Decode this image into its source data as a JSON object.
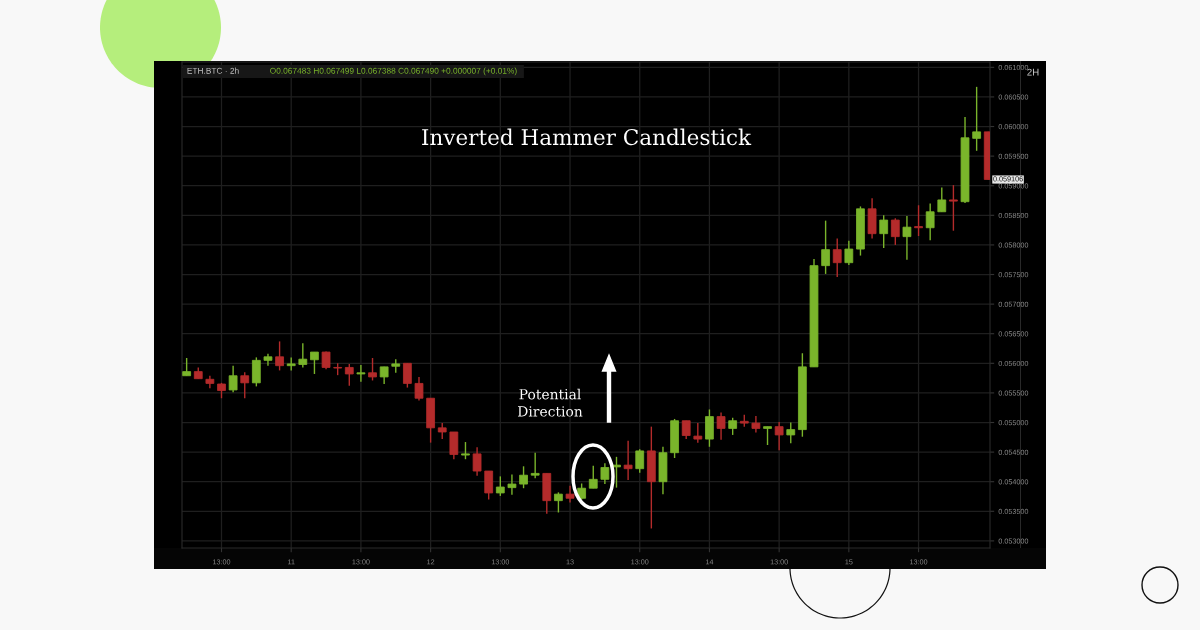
{
  "chart_data": {
    "type": "candlestick",
    "title": "Inverted Hammer Candlestick",
    "subtitle": "ETH.BTC · 2h",
    "categories": [
      null,
      null,
      null,
      "13:00",
      null,
      null,
      null,
      null,
      null,
      "11",
      null,
      null,
      null,
      null,
      null,
      "13:00",
      null,
      null,
      null,
      null,
      null,
      "12",
      null,
      null,
      null,
      null,
      null,
      "13:00",
      null,
      null,
      null,
      null,
      null,
      "13",
      null,
      null,
      null,
      null,
      null,
      "13:00",
      null,
      null,
      null,
      null,
      null,
      "14",
      null,
      null,
      null,
      null,
      null,
      "13:00",
      null,
      null,
      null,
      null,
      null,
      "15",
      null,
      null,
      null,
      null,
      null,
      "13:00",
      null,
      null,
      null,
      null,
      null,
      null
    ],
    "ohlc": [
      [
        0.05579,
        0.05609,
        0.05579,
        0.05586
      ],
      [
        0.05586,
        0.05593,
        0.05574,
        0.05574
      ],
      [
        0.05573,
        0.05579,
        0.05558,
        0.05566
      ],
      [
        0.05565,
        0.05567,
        0.05541,
        0.05554
      ],
      [
        0.05555,
        0.05596,
        0.05551,
        0.05579
      ],
      [
        0.05579,
        0.05585,
        0.05541,
        0.05567
      ],
      [
        0.05567,
        0.0561,
        0.05561,
        0.05605
      ],
      [
        0.05605,
        0.05616,
        0.05596,
        0.05611
      ],
      [
        0.05611,
        0.05637,
        0.05588,
        0.05596
      ],
      [
        0.05596,
        0.0561,
        0.05588,
        0.05599
      ],
      [
        0.05598,
        0.05634,
        0.05593,
        0.05607
      ],
      [
        0.05606,
        0.05619,
        0.05582,
        0.05619
      ],
      [
        0.05619,
        0.0562,
        0.0559,
        0.05593
      ],
      [
        0.05593,
        0.056,
        0.0558,
        0.05592
      ],
      [
        0.05593,
        0.05599,
        0.05562,
        0.05582
      ],
      [
        0.05582,
        0.05597,
        0.05569,
        0.05584
      ],
      [
        0.05584,
        0.05609,
        0.05571,
        0.05577
      ],
      [
        0.05577,
        0.05594,
        0.05565,
        0.05594
      ],
      [
        0.05595,
        0.05607,
        0.05584,
        0.05599
      ],
      [
        0.056,
        0.056,
        0.05559,
        0.05566
      ],
      [
        0.05566,
        0.05577,
        0.05537,
        0.05541
      ],
      [
        0.05541,
        0.05541,
        0.05466,
        0.05491
      ],
      [
        0.05491,
        0.05499,
        0.05472,
        0.05484
      ],
      [
        0.05484,
        0.05484,
        0.05438,
        0.05446
      ],
      [
        0.05445,
        0.05467,
        0.05438,
        0.05447
      ],
      [
        0.05447,
        0.05458,
        0.0541,
        0.05418
      ],
      [
        0.05418,
        0.05418,
        0.0537,
        0.05381
      ],
      [
        0.05381,
        0.05409,
        0.05376,
        0.05391
      ],
      [
        0.0539,
        0.05412,
        0.05378,
        0.05396
      ],
      [
        0.05396,
        0.05426,
        0.05389,
        0.05411
      ],
      [
        0.05411,
        0.05449,
        0.05406,
        0.05414
      ],
      [
        0.05414,
        0.05414,
        0.05346,
        0.05368
      ],
      [
        0.05368,
        0.05382,
        0.05348,
        0.05379
      ],
      [
        0.05379,
        0.05393,
        0.05365,
        0.05372
      ],
      [
        0.05372,
        0.05397,
        0.0537,
        0.05389
      ],
      [
        0.05389,
        0.05427,
        0.05389,
        0.05404
      ],
      [
        0.05404,
        0.05431,
        0.05396,
        0.05424
      ],
      [
        0.05425,
        0.05442,
        0.0539,
        0.05428
      ],
      [
        0.05428,
        0.05469,
        0.05403,
        0.05422
      ],
      [
        0.05422,
        0.05455,
        0.05415,
        0.05452
      ],
      [
        0.05452,
        0.05493,
        0.05321,
        0.054
      ],
      [
        0.054,
        0.05459,
        0.05379,
        0.05449
      ],
      [
        0.05449,
        0.05506,
        0.0544,
        0.05503
      ],
      [
        0.05503,
        0.05503,
        0.05472,
        0.05478
      ],
      [
        0.05477,
        0.05499,
        0.05466,
        0.05472
      ],
      [
        0.05472,
        0.05522,
        0.05459,
        0.0551
      ],
      [
        0.0551,
        0.05517,
        0.05471,
        0.0549
      ],
      [
        0.0549,
        0.05508,
        0.05479,
        0.05503
      ],
      [
        0.05502,
        0.05513,
        0.05493,
        0.05499
      ],
      [
        0.05499,
        0.05511,
        0.05483,
        0.0549
      ],
      [
        0.0549,
        0.05493,
        0.05462,
        0.05493
      ],
      [
        0.05493,
        0.05501,
        0.05453,
        0.05479
      ],
      [
        0.05479,
        0.055,
        0.05465,
        0.05488
      ],
      [
        0.05488,
        0.05617,
        0.05476,
        0.05594
      ],
      [
        0.05594,
        0.05776,
        0.05594,
        0.05765
      ],
      [
        0.05765,
        0.05841,
        0.05751,
        0.05792
      ],
      [
        0.05792,
        0.05811,
        0.05746,
        0.0577
      ],
      [
        0.0577,
        0.05807,
        0.05766,
        0.05793
      ],
      [
        0.05793,
        0.05865,
        0.05782,
        0.05861
      ],
      [
        0.05861,
        0.05879,
        0.05811,
        0.05819
      ],
      [
        0.05819,
        0.0585,
        0.05795,
        0.05842
      ],
      [
        0.05842,
        0.05845,
        0.058,
        0.05814
      ],
      [
        0.05814,
        0.05849,
        0.05775,
        0.0583
      ],
      [
        0.05831,
        0.05867,
        0.05815,
        0.05829
      ],
      [
        0.05829,
        0.0587,
        0.05808,
        0.05856
      ],
      [
        0.05856,
        0.05897,
        0.05856,
        0.05876
      ],
      [
        0.05876,
        0.05901,
        0.05824,
        0.05874
      ],
      [
        0.05873,
        0.06016,
        0.05871,
        0.05981
      ],
      [
        0.0598,
        0.06067,
        0.05959,
        0.05991
      ],
      [
        0.05991,
        0.05991,
        0.059106,
        0.059106
      ]
    ],
    "colors": [
      "#7ab52b",
      "#b42b2b",
      "#b42b2b",
      "#b42b2b",
      "#7ab52b",
      "#b42b2b",
      "#7ab52b",
      "#7ab52b",
      "#b42b2b",
      "#7ab52b",
      "#7ab52b",
      "#7ab52b",
      "#b42b2b",
      "#b42b2b",
      "#b42b2b",
      "#7ab52b",
      "#b42b2b",
      "#7ab52b",
      "#7ab52b",
      "#b42b2b",
      "#b42b2b",
      "#b42b2b",
      "#b42b2b",
      "#b42b2b",
      "#7ab52b",
      "#b42b2b",
      "#b42b2b",
      "#7ab52b",
      "#7ab52b",
      "#7ab52b",
      "#7ab52b",
      "#b42b2b",
      "#7ab52b",
      "#b42b2b",
      "#7ab52b",
      "#7ab52b",
      "#7ab52b",
      "#7ab52b",
      "#b42b2b",
      "#7ab52b",
      "#b42b2b",
      "#7ab52b",
      "#7ab52b",
      "#b42b2b",
      "#b42b2b",
      "#7ab52b",
      "#b42b2b",
      "#7ab52b",
      "#b42b2b",
      "#b42b2b",
      "#7ab52b",
      "#b42b2b",
      "#7ab52b",
      "#7ab52b",
      "#7ab52b",
      "#7ab52b",
      "#b42b2b",
      "#7ab52b",
      "#7ab52b",
      "#b42b2b",
      "#7ab52b",
      "#b42b2b",
      "#7ab52b",
      "#b42b2b",
      "#7ab52b",
      "#7ab52b",
      "#b42b2b",
      "#7ab52b",
      "#7ab52b",
      "#b42b2b"
    ],
    "ylim": [
      0.05288,
      0.06109
    ],
    "yticks": [
      {
        "value": 0.053,
        "label": "0.053000"
      },
      {
        "value": 0.0535,
        "label": "0.053500"
      },
      {
        "value": 0.054,
        "label": "0.054000"
      },
      {
        "value": 0.0545,
        "label": "0.054500"
      },
      {
        "value": 0.055,
        "label": "0.055000"
      },
      {
        "value": 0.0555,
        "label": "0.055500"
      },
      {
        "value": 0.056,
        "label": "0.056000"
      },
      {
        "value": 0.0565,
        "label": "0.056500"
      },
      {
        "value": 0.057,
        "label": "0.057000"
      },
      {
        "value": 0.0575,
        "label": "0.057500"
      },
      {
        "value": 0.058,
        "label": "0.058000"
      },
      {
        "value": 0.0585,
        "label": "0.058500"
      },
      {
        "value": 0.059,
        "label": "0.059000"
      },
      {
        "value": 0.0595,
        "label": "0.059500"
      },
      {
        "value": 0.06,
        "label": "0.060000"
      },
      {
        "value": 0.0605,
        "label": "0.060500"
      },
      {
        "value": 0.061,
        "label": "0.061000"
      }
    ],
    "grid": true,
    "annotations": [
      "O0.067483 H0.067499 L0.067388 C0.067490 +0.000007 (+0.01%)",
      "2H",
      "Potential\nDirection",
      "0.059106"
    ]
  }
}
